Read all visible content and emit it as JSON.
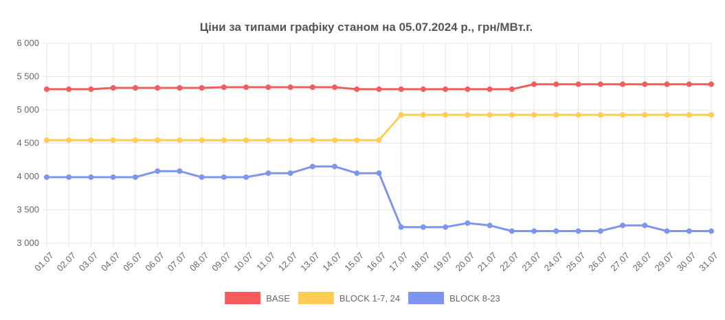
{
  "chart_data": {
    "type": "line",
    "title": "Ціни за типами графіку станом на 05.07.2024 р., грн/МВт.г.",
    "xlabel": "",
    "ylabel": "",
    "ylim": [
      3000,
      6000
    ],
    "yticks": [
      "3 000",
      "3 500",
      "4 000",
      "4 500",
      "5 000",
      "5 500",
      "6 000"
    ],
    "ytick_values": [
      3000,
      3500,
      4000,
      4500,
      5000,
      5500,
      6000
    ],
    "grid": true,
    "legend_position": "bottom",
    "categories": [
      "01.07",
      "02.07",
      "03.07",
      "04.07",
      "05.07",
      "06.07",
      "07.07",
      "08.07",
      "09.07",
      "10.07",
      "11.07",
      "12.07",
      "13.07",
      "14.07",
      "15.07",
      "16.07",
      "17.07",
      "18.07",
      "19.07",
      "20.07",
      "21.07",
      "22.07",
      "23.07",
      "24.07",
      "25.07",
      "26.07",
      "27.07",
      "28.07",
      "29.07",
      "30.07",
      "31.07"
    ],
    "series": [
      {
        "name": "BASE",
        "color": "#f45b5b",
        "values": [
          5310,
          5310,
          5310,
          5330,
          5330,
          5330,
          5330,
          5330,
          5340,
          5340,
          5340,
          5340,
          5340,
          5340,
          5310,
          5310,
          5310,
          5310,
          5310,
          5310,
          5310,
          5310,
          5385,
          5385,
          5385,
          5385,
          5385,
          5385,
          5385,
          5385,
          5385
        ]
      },
      {
        "name": "BLOCK 1-7, 24",
        "color": "#ffcd56",
        "values": [
          4545,
          4545,
          4545,
          4545,
          4545,
          4545,
          4545,
          4545,
          4545,
          4545,
          4545,
          4545,
          4545,
          4545,
          4545,
          4545,
          4925,
          4925,
          4925,
          4925,
          4925,
          4925,
          4925,
          4925,
          4925,
          4925,
          4925,
          4925,
          4925,
          4925,
          4925
        ]
      },
      {
        "name": "BLOCK 8-23",
        "color": "#7e95ee",
        "values": [
          3990,
          3990,
          3990,
          3990,
          3990,
          4080,
          4080,
          3990,
          3990,
          3990,
          4050,
          4050,
          4150,
          4150,
          4050,
          4050,
          3240,
          3240,
          3240,
          3300,
          3265,
          3180,
          3180,
          3180,
          3180,
          3180,
          3265,
          3265,
          3180,
          3180,
          3180
        ]
      }
    ]
  }
}
